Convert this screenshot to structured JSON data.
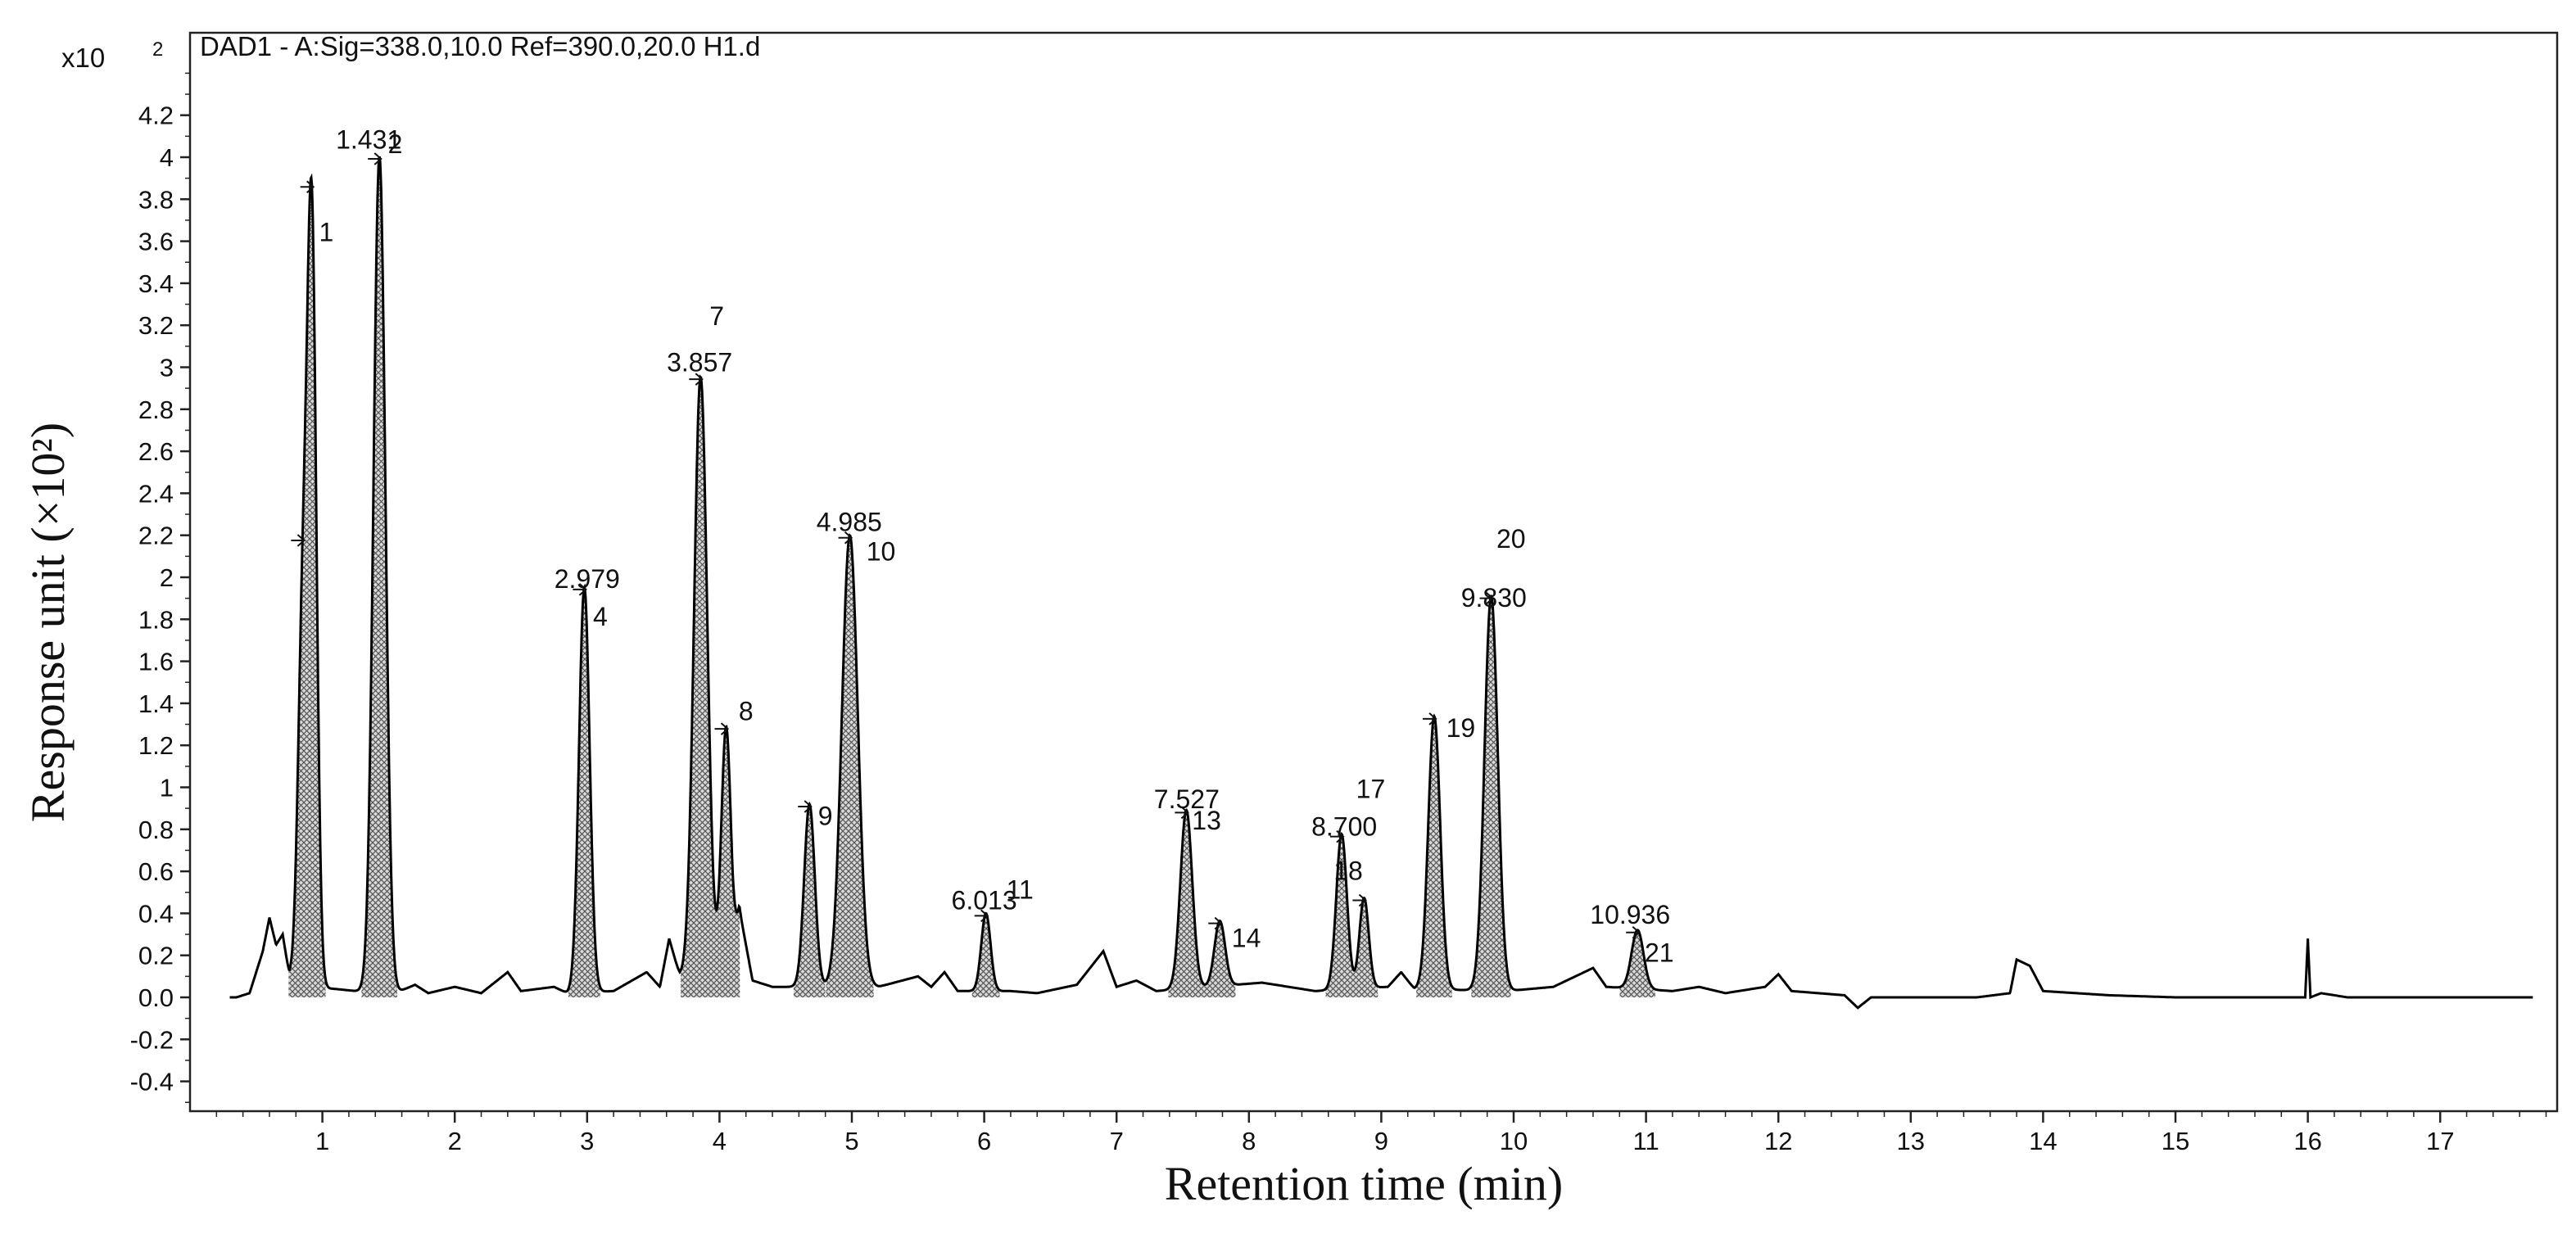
{
  "chart_data": {
    "type": "line",
    "title": "DAD1 - A:Sig=338.0,10.0 Ref=390.0,20.0 H1.d",
    "scale_label": "x10",
    "scale_exponent": "2",
    "xlabel": "Retention time (min)",
    "ylabel": "Response unit (×10²)",
    "xlim": [
      0,
      17.8
    ],
    "ylim": [
      -0.55,
      4.5
    ],
    "x_ticks": [
      "1",
      "2",
      "3",
      "4",
      "5",
      "6",
      "7",
      "8",
      "9",
      "10",
      "11",
      "12",
      "13",
      "14",
      "15",
      "16",
      "17"
    ],
    "y_ticks": [
      "-0.4",
      "-0.2",
      "0.0",
      "0.2",
      "0.4",
      "0.6",
      "0.8",
      "1",
      "1.2",
      "1.4",
      "1.6",
      "1.8",
      "2",
      "2.2",
      "2.4",
      "2.6",
      "2.8",
      "3",
      "3.2",
      "3.4",
      "3.6",
      "3.8",
      "4",
      "4.2"
    ],
    "baseline": [
      [
        0.35,
        0
      ],
      [
        0.45,
        0.02
      ],
      [
        0.5,
        0.12
      ],
      [
        0.55,
        0.22
      ],
      [
        0.6,
        0.38
      ],
      [
        0.65,
        0.25
      ],
      [
        0.7,
        0.3
      ],
      [
        0.75,
        0.1
      ],
      [
        0.85,
        0.05
      ],
      [
        1.1,
        0.04
      ],
      [
        1.25,
        0.03
      ],
      [
        1.55,
        0.02
      ],
      [
        1.7,
        0.06
      ],
      [
        1.8,
        0.02
      ],
      [
        2.0,
        0.05
      ],
      [
        2.2,
        0.02
      ],
      [
        2.4,
        0.12
      ],
      [
        2.5,
        0.03
      ],
      [
        2.75,
        0.05
      ],
      [
        2.85,
        0.02
      ],
      [
        3.2,
        0.03
      ],
      [
        3.45,
        0.12
      ],
      [
        3.55,
        0.05
      ],
      [
        3.62,
        0.28
      ],
      [
        3.7,
        0.1
      ],
      [
        3.8,
        0.05
      ],
      [
        4.1,
        0.18
      ],
      [
        4.15,
        0.42
      ],
      [
        4.25,
        0.08
      ],
      [
        4.4,
        0.05
      ],
      [
        5.2,
        0.05
      ],
      [
        5.5,
        0.1
      ],
      [
        5.6,
        0.05
      ],
      [
        5.7,
        0.12
      ],
      [
        5.8,
        0.03
      ],
      [
        6.2,
        0.03
      ],
      [
        6.4,
        0.02
      ],
      [
        6.7,
        0.06
      ],
      [
        6.9,
        0.22
      ],
      [
        7.0,
        0.05
      ],
      [
        7.15,
        0.08
      ],
      [
        7.3,
        0.03
      ],
      [
        7.9,
        0.06
      ],
      [
        8.1,
        0.07
      ],
      [
        8.5,
        0.03
      ],
      [
        9.05,
        0.05
      ],
      [
        9.15,
        0.12
      ],
      [
        9.25,
        0.04
      ],
      [
        9.95,
        0.03
      ],
      [
        10.3,
        0.05
      ],
      [
        10.6,
        0.14
      ],
      [
        10.7,
        0.05
      ],
      [
        11.2,
        0.03
      ],
      [
        11.4,
        0.05
      ],
      [
        11.6,
        0.02
      ],
      [
        11.9,
        0.05
      ],
      [
        12.0,
        0.11
      ],
      [
        12.1,
        0.03
      ],
      [
        12.5,
        0.01
      ],
      [
        12.6,
        -0.05
      ],
      [
        12.7,
        0.0
      ],
      [
        13.5,
        0.0
      ],
      [
        13.75,
        0.02
      ],
      [
        13.8,
        0.18
      ],
      [
        13.9,
        0.15
      ],
      [
        14.0,
        0.03
      ],
      [
        14.5,
        0.01
      ],
      [
        15.0,
        0.0
      ],
      [
        15.98,
        0.0
      ],
      [
        16.0,
        0.28
      ],
      [
        16.02,
        0.0
      ],
      [
        16.1,
        0.02
      ],
      [
        16.3,
        0.0
      ],
      [
        17.7,
        0.0
      ]
    ],
    "peaks": [
      {
        "rt": 0.85,
        "height": 1.65,
        "width": 0.035,
        "label": ""
      },
      {
        "rt": 0.92,
        "height": 3.6,
        "width": 0.035,
        "label": "1"
      },
      {
        "rt": 1.431,
        "height": 3.98,
        "width": 0.045,
        "label": "1.431 2"
      },
      {
        "rt": 2.979,
        "height": 1.93,
        "width": 0.04,
        "label": "2.979 4"
      },
      {
        "rt": 3.857,
        "height": 2.88,
        "width": 0.05,
        "label": "3.857 7"
      },
      {
        "rt": 4.05,
        "height": 1.13,
        "width": 0.035,
        "label": "8"
      },
      {
        "rt": 4.68,
        "height": 0.87,
        "width": 0.04,
        "label": "9"
      },
      {
        "rt": 4.985,
        "height": 2.15,
        "width": 0.06,
        "label": "4.985 10"
      },
      {
        "rt": 6.013,
        "height": 0.37,
        "width": 0.035,
        "label": "6.013 11"
      },
      {
        "rt": 7.527,
        "height": 0.85,
        "width": 0.045,
        "label": "7.527 13"
      },
      {
        "rt": 7.78,
        "height": 0.31,
        "width": 0.04,
        "label": "14"
      },
      {
        "rt": 8.7,
        "height": 0.74,
        "width": 0.04,
        "label": "8.700 17"
      },
      {
        "rt": 8.87,
        "height": 0.43,
        "width": 0.035,
        "label": "18"
      },
      {
        "rt": 9.4,
        "height": 1.3,
        "width": 0.045,
        "label": "19"
      },
      {
        "rt": 9.83,
        "height": 1.88,
        "width": 0.05,
        "label": "9.830 20"
      },
      {
        "rt": 10.936,
        "height": 0.28,
        "width": 0.045,
        "label": "10.936 21"
      }
    ],
    "annotations": [
      {
        "text": "1",
        "x": 1.03,
        "y": 3.6
      },
      {
        "text": "1.431",
        "x": 1.35,
        "y": 4.04
      },
      {
        "text": "2",
        "x": 1.55,
        "y": 4.02
      },
      {
        "text": "2.979",
        "x": 3.0,
        "y": 1.95
      },
      {
        "text": "4",
        "x": 3.1,
        "y": 1.77
      },
      {
        "text": "7",
        "x": 3.98,
        "y": 3.2
      },
      {
        "text": "3.857",
        "x": 3.85,
        "y": 2.98
      },
      {
        "text": "8",
        "x": 4.2,
        "y": 1.32
      },
      {
        "text": "9",
        "x": 4.8,
        "y": 0.82
      },
      {
        "text": "4.985",
        "x": 4.98,
        "y": 2.22
      },
      {
        "text": "10",
        "x": 5.22,
        "y": 2.08
      },
      {
        "text": "6.013",
        "x": 6.0,
        "y": 0.42
      },
      {
        "text": "11",
        "x": 6.27,
        "y": 0.47
      },
      {
        "text": "7.527",
        "x": 7.53,
        "y": 0.9
      },
      {
        "text": "13",
        "x": 7.68,
        "y": 0.8
      },
      {
        "text": "14",
        "x": 7.98,
        "y": 0.24
      },
      {
        "text": "8.700",
        "x": 8.72,
        "y": 0.77
      },
      {
        "text": "17",
        "x": 8.92,
        "y": 0.95
      },
      {
        "text": "18",
        "x": 8.75,
        "y": 0.56
      },
      {
        "text": "19",
        "x": 9.6,
        "y": 1.24
      },
      {
        "text": "20",
        "x": 9.98,
        "y": 2.14
      },
      {
        "text": "9.830",
        "x": 9.85,
        "y": 1.86
      },
      {
        "text": "10.936",
        "x": 10.88,
        "y": 0.35
      },
      {
        "text": "21",
        "x": 11.1,
        "y": 0.17
      }
    ],
    "grid": false,
    "legend": "none",
    "line_color": "#000000",
    "fill_color": "#9a9a9a"
  }
}
